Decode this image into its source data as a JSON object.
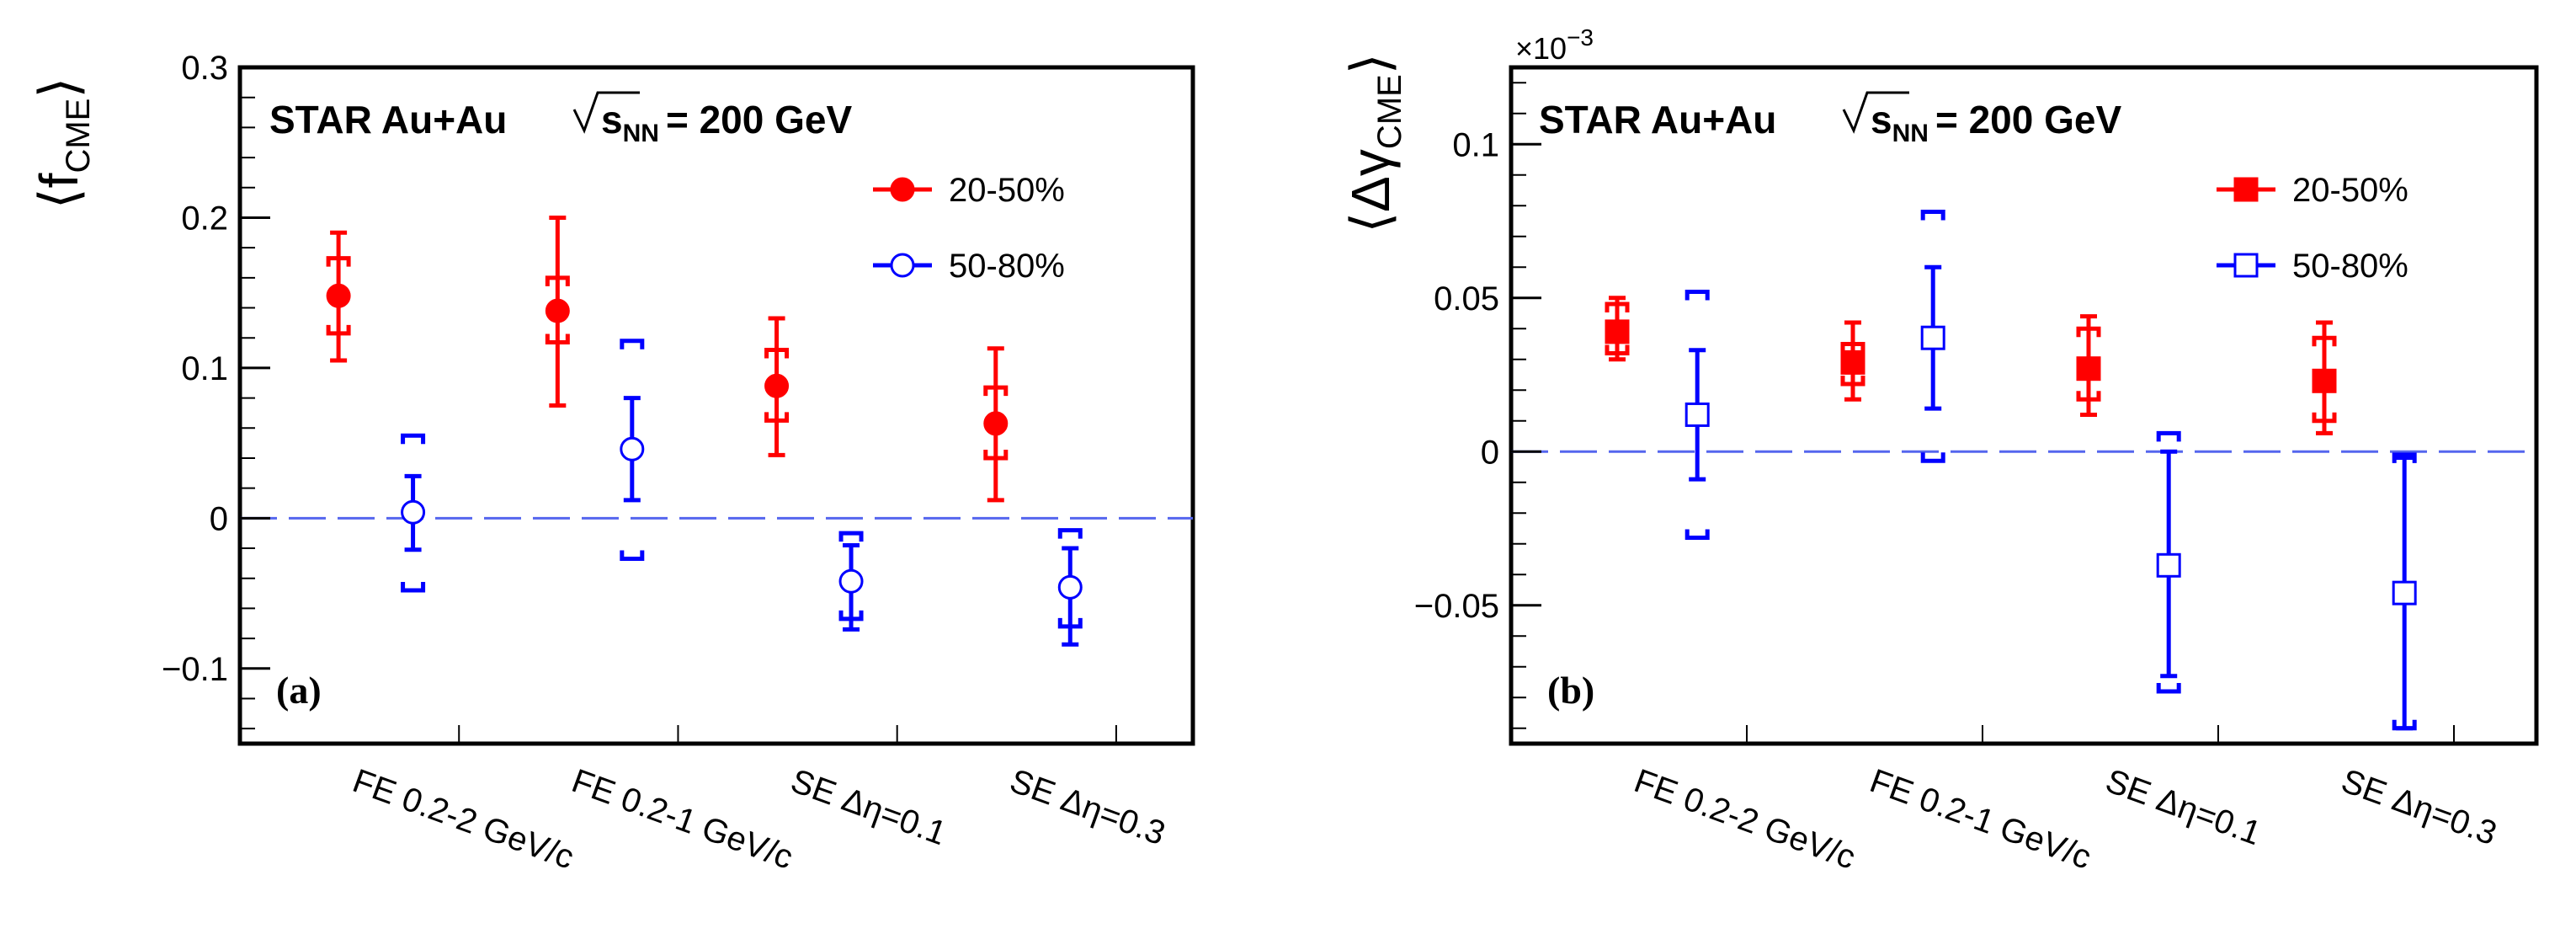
{
  "colors": {
    "red": "#ff0000",
    "blue": "#0000ff",
    "zero_line": "#5566ee",
    "axis": "#000000"
  },
  "chart_data": [
    {
      "type": "scatter",
      "panel_label": "(a)",
      "title": "STAR Au+Au",
      "title_sqrt": "s",
      "title_sqrt_sub": "NN",
      "title_energy": "= 200 GeV",
      "ylabel_main": "f",
      "ylabel_sub": "CME",
      "yscale_note": "",
      "ylim": [
        -0.15,
        0.3
      ],
      "yticks": [
        -0.1,
        0,
        0.1,
        0.2,
        0.3
      ],
      "ytick_labels": [
        "−0.1",
        "0",
        "0.1",
        "0.2",
        "0.3"
      ],
      "categories": [
        "FE 0.2-2 GeV/c",
        "FE 0.2-1 GeV/c",
        "SE Δη=0.1",
        "SE Δη=0.3"
      ],
      "zero_line": true,
      "series": [
        {
          "name": "20-50%",
          "color_key": "red",
          "marker": "filled-circle",
          "values": [
            0.148,
            0.138,
            0.088,
            0.063
          ],
          "stat_err": [
            [
              0.105,
              0.19
            ],
            [
              0.075,
              0.2
            ],
            [
              0.042,
              0.133
            ],
            [
              0.012,
              0.113
            ]
          ],
          "sys_err": [
            [
              0.123,
              0.173
            ],
            [
              0.117,
              0.16
            ],
            [
              0.065,
              0.112
            ],
            [
              0.04,
              0.087
            ]
          ]
        },
        {
          "name": "50-80%",
          "color_key": "blue",
          "marker": "open-circle",
          "values": [
            0.004,
            0.046,
            -0.042,
            -0.046
          ],
          "stat_err": [
            [
              -0.021,
              0.028
            ],
            [
              0.012,
              0.08
            ],
            [
              -0.074,
              -0.018
            ],
            [
              -0.084,
              -0.02
            ]
          ],
          "sys_err": [
            [
              -0.048,
              0.055
            ],
            [
              -0.027,
              0.118
            ],
            [
              -0.067,
              -0.01
            ],
            [
              -0.072,
              -0.008
            ]
          ]
        }
      ]
    },
    {
      "type": "scatter",
      "panel_label": "(b)",
      "title": "STAR Au+Au",
      "title_sqrt": "s",
      "title_sqrt_sub": "NN",
      "title_energy": "= 200 GeV",
      "ylabel_main": "Δγ",
      "ylabel_sub": "CME",
      "yscale_note": "×10",
      "yscale_exp": "−3",
      "ylim": [
        -0.095,
        0.125
      ],
      "yticks": [
        -0.05,
        0,
        0.05,
        0.1
      ],
      "ytick_labels": [
        "−0.05",
        "0",
        "0.05",
        "0.1"
      ],
      "categories": [
        "FE 0.2-2 GeV/c",
        "FE 0.2-1 GeV/c",
        "SE Δη=0.1",
        "SE Δη=0.3"
      ],
      "zero_line": true,
      "series": [
        {
          "name": "20-50%",
          "color_key": "red",
          "marker": "filled-square",
          "values": [
            0.039,
            0.029,
            0.027,
            0.023
          ],
          "stat_err": [
            [
              0.03,
              0.05
            ],
            [
              0.017,
              0.042
            ],
            [
              0.012,
              0.044
            ],
            [
              0.006,
              0.042
            ]
          ],
          "sys_err": [
            [
              0.032,
              0.048
            ],
            [
              0.022,
              0.035
            ],
            [
              0.017,
              0.04
            ],
            [
              0.01,
              0.037
            ]
          ]
        },
        {
          "name": "50-80%",
          "color_key": "blue",
          "marker": "open-square",
          "values": [
            0.012,
            0.037,
            -0.037,
            -0.046
          ],
          "stat_err": [
            [
              -0.009,
              0.033
            ],
            [
              0.014,
              0.06
            ],
            [
              -0.073,
              0.0
            ],
            [
              -0.09,
              -0.002
            ]
          ],
          "sys_err": [
            [
              -0.028,
              0.052
            ],
            [
              -0.003,
              0.078
            ],
            [
              -0.078,
              0.006
            ],
            [
              -0.09,
              -0.001
            ]
          ]
        }
      ]
    }
  ]
}
